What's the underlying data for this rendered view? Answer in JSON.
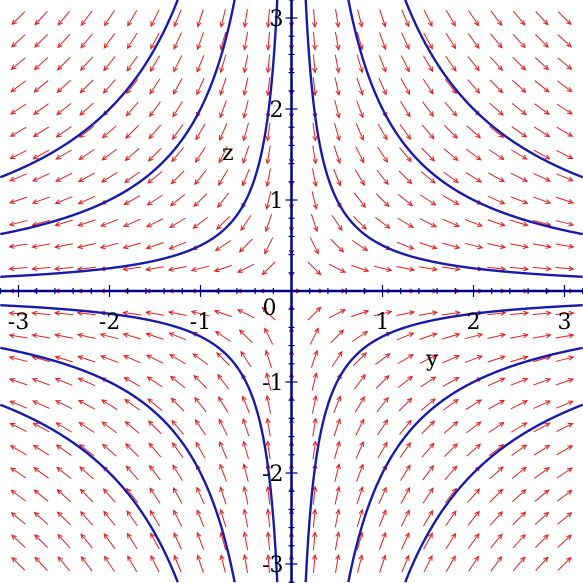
{
  "chart_data": {
    "type": "direction-field",
    "xlabel": "y",
    "ylabel": "z",
    "xlim": [
      -3.2,
      3.2
    ],
    "ylim": [
      -3.2,
      3.2
    ],
    "x_ticks": [
      -3,
      -2,
      -1,
      0,
      1,
      2,
      3
    ],
    "y_ticks": [
      -3,
      -2,
      -1,
      1,
      2,
      3
    ],
    "x_tick_labels": [
      "-3",
      "-2",
      "-1",
      "0",
      "1",
      "2",
      "3"
    ],
    "y_tick_labels": [
      "-3",
      "-2",
      "-1",
      "1",
      "2",
      "3"
    ],
    "field": {
      "dy": "y",
      "dz": "-z",
      "grid_x": [
        -3,
        3,
        25
      ],
      "grid_y": [
        -3,
        3,
        25
      ]
    },
    "solution_curves": [
      {
        "family": "y*z = c",
        "c": [
          -4,
          -2,
          -0.5,
          0.5,
          2,
          4
        ]
      }
    ],
    "grid": false,
    "colors": {
      "arrows": "#dd2222",
      "curves": "#1a1aaa",
      "axes": "#000080"
    }
  }
}
